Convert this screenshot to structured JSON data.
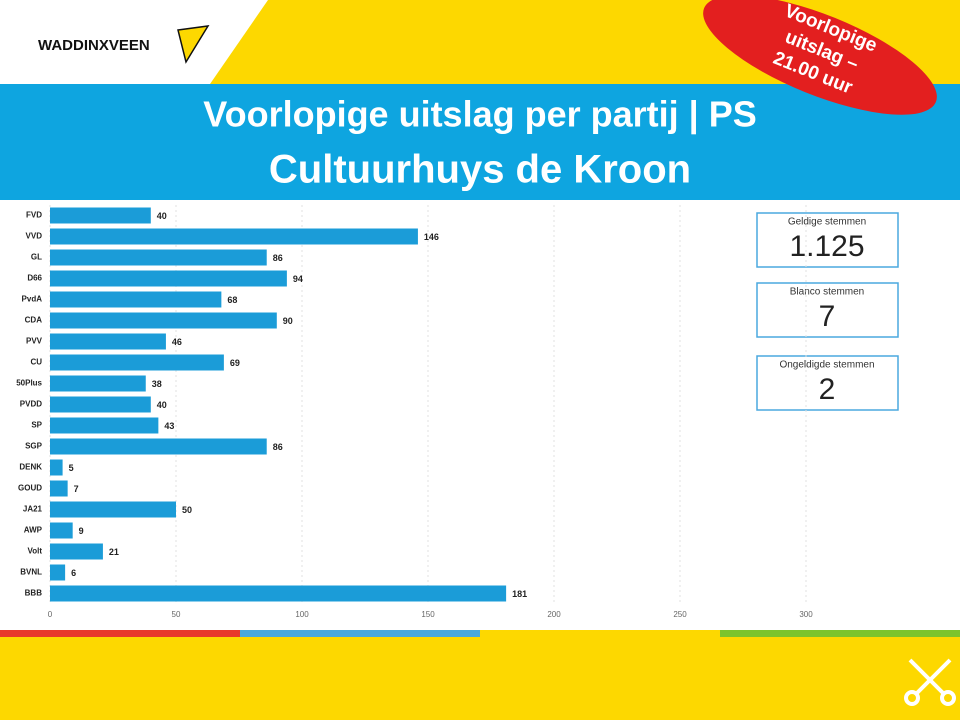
{
  "logo": "WADDINXVEEN",
  "badge": [
    "Voorlopige",
    "uitslag –",
    "21.00 uur"
  ],
  "title": [
    "Voorlopige uitslag per partij | PS",
    "Cultuurhuys de Kroon"
  ],
  "stats": [
    {
      "label": "Geldige stemmen",
      "value": 1125,
      "value_label": "1.125"
    },
    {
      "label": "Blanco stemmen",
      "value": 7
    },
    {
      "label": "Ongeldigde stemmen",
      "value": 2
    }
  ],
  "chart_data": {
    "type": "bar",
    "orientation": "horizontal",
    "color": "#1b9cd8",
    "categories": [
      "FVD",
      "VVD",
      "GL",
      "D66",
      "PvdA",
      "CDA",
      "PVV",
      "CU",
      "50Plus",
      "PVDD",
      "SP",
      "SGP",
      "DENK",
      "GOUD",
      "JA21",
      "AWP",
      "Volt",
      "BVNL",
      "BBB"
    ],
    "values": [
      40,
      146,
      86,
      94,
      68,
      90,
      46,
      69,
      38,
      40,
      43,
      86,
      5,
      7,
      50,
      9,
      21,
      6,
      181
    ],
    "xlim": [
      0,
      350
    ],
    "xticks": [
      0,
      50,
      100,
      150,
      200,
      250,
      300
    ],
    "grid": true
  }
}
